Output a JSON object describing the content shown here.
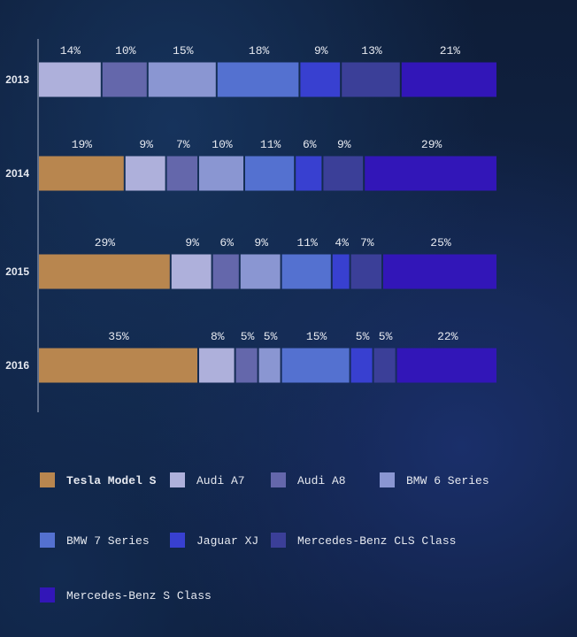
{
  "chart_data": {
    "type": "bar",
    "orientation": "horizontal",
    "stacked": true,
    "categories": [
      "2013",
      "2014",
      "2015",
      "2016"
    ],
    "series": [
      {
        "name": "Tesla Model S",
        "color": "#b8864f",
        "values": [
          0,
          19,
          29,
          35
        ]
      },
      {
        "name": "Audi A7",
        "color": "#aeb0db",
        "values": [
          14,
          9,
          9,
          8
        ]
      },
      {
        "name": "Audi A8",
        "color": "#6467ab",
        "values": [
          10,
          7,
          6,
          5
        ]
      },
      {
        "name": "BMW 6 Series",
        "color": "#8a96d2",
        "values": [
          15,
          10,
          9,
          5
        ]
      },
      {
        "name": "BMW 7 Series",
        "color": "#5471d0",
        "values": [
          18,
          11,
          11,
          15
        ]
      },
      {
        "name": "Jaguar XJ",
        "color": "#3840d0",
        "values": [
          9,
          6,
          4,
          5
        ]
      },
      {
        "name": "Mercedes-Benz CLS Class",
        "color": "#3b3f98",
        "values": [
          13,
          9,
          7,
          5
        ]
      },
      {
        "name": "Mercedes-Benz S Class",
        "color": "#3216b8",
        "values": [
          21,
          29,
          25,
          22
        ]
      }
    ],
    "data_labels": [
      [
        "",
        "14%",
        "10%",
        "15%",
        "18%",
        "9%",
        "13%",
        "21%"
      ],
      [
        "19%",
        "9%",
        "7%",
        "10%",
        "11%",
        "6%",
        "9%",
        "29%"
      ],
      [
        "29%",
        "9%",
        "6%",
        "9%",
        "11%",
        "4%",
        "7%",
        "25%"
      ],
      [
        "35%",
        "8%",
        "5%",
        "5%",
        "15%",
        "5%",
        "5%",
        "22%"
      ]
    ],
    "title": "",
    "xlabel": "",
    "ylabel": "",
    "xlim": [
      0,
      100
    ],
    "grid": false,
    "legend_position": "bottom"
  }
}
